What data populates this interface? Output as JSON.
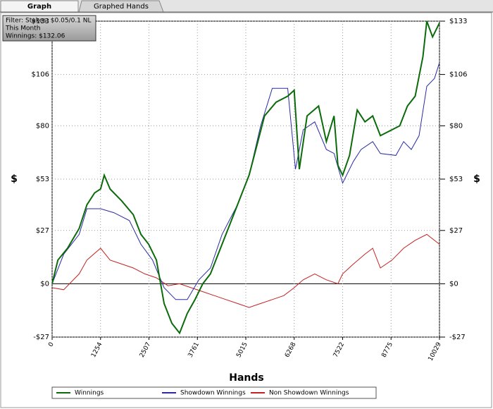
{
  "tabs": [
    "Graph",
    "Graphed Hands"
  ],
  "chart_data": {
    "type": "line",
    "info_lines": [
      "Filter: Stakes: $0.05/0.1 NL",
      "This Month",
      "Winnings: $132.06"
    ],
    "x_label": "Hands",
    "y_label": "$",
    "xlim": [
      0,
      10029
    ],
    "xticks": [
      0,
      1254,
      2507,
      3761,
      5015,
      6268,
      7522,
      8775,
      10029
    ],
    "ylim": [
      -27,
      133
    ],
    "yticks": [
      {
        "value": -27,
        "label": "-$27"
      },
      {
        "value": 0,
        "label": "$0"
      },
      {
        "value": 27,
        "label": "$27"
      },
      {
        "value": 53,
        "label": "$53"
      },
      {
        "value": 80,
        "label": "$80"
      },
      {
        "value": 106,
        "label": "$106"
      },
      {
        "value": 133,
        "label": "$133"
      }
    ],
    "grid": true,
    "series": [
      {
        "name": "Winnings",
        "color": "#0b6b0b",
        "x": [
          0,
          150,
          400,
          700,
          900,
          1100,
          1254,
          1350,
          1500,
          1800,
          2100,
          2300,
          2500,
          2700,
          2900,
          3100,
          3300,
          3500,
          3700,
          3900,
          4100,
          4300,
          4600,
          4900,
          5100,
          5300,
          5500,
          5800,
          6100,
          6268,
          6400,
          6600,
          6900,
          7100,
          7300,
          7400,
          7522,
          7700,
          7900,
          8100,
          8300,
          8500,
          8800,
          9000,
          9200,
          9400,
          9600,
          9700,
          9850,
          10029
        ],
        "values": [
          0,
          12,
          18,
          28,
          40,
          46,
          48,
          55,
          48,
          42,
          35,
          25,
          20,
          12,
          -10,
          -20,
          -25,
          -15,
          -8,
          0,
          5,
          15,
          30,
          45,
          55,
          70,
          85,
          92,
          95,
          98,
          58,
          85,
          90,
          72,
          85,
          60,
          55,
          65,
          88,
          82,
          85,
          75,
          78,
          80,
          90,
          95,
          115,
          133,
          125,
          132.06
        ]
      },
      {
        "name": "Showdown Winnings",
        "color": "#2a2aa8",
        "x": [
          0,
          300,
          700,
          900,
          1254,
          1600,
          2000,
          2300,
          2600,
          2900,
          3200,
          3500,
          3800,
          4100,
          4400,
          4800,
          5100,
          5400,
          5700,
          6100,
          6300,
          6500,
          6800,
          7100,
          7300,
          7522,
          7800,
          8000,
          8300,
          8500,
          8900,
          9100,
          9300,
          9500,
          9700,
          9900,
          10029
        ],
        "values": [
          0,
          15,
          25,
          38,
          38,
          36,
          32,
          20,
          12,
          -2,
          -8,
          -8,
          2,
          8,
          25,
          40,
          55,
          80,
          99,
          99,
          58,
          78,
          82,
          68,
          66,
          51,
          62,
          68,
          72,
          66,
          65,
          72,
          68,
          75,
          100,
          104,
          112
        ]
      },
      {
        "name": "Non Showdown Winnings",
        "color": "#c42222",
        "x": [
          0,
          300,
          700,
          900,
          1254,
          1500,
          1800,
          2100,
          2400,
          2700,
          3000,
          3300,
          3600,
          3900,
          4200,
          4500,
          4800,
          5100,
          5400,
          5700,
          6000,
          6268,
          6500,
          6800,
          7100,
          7400,
          7522,
          7800,
          8100,
          8300,
          8500,
          8800,
          9100,
          9400,
          9700,
          10029
        ],
        "values": [
          -2,
          -3,
          5,
          12,
          18,
          12,
          10,
          8,
          5,
          3,
          -1,
          0,
          -2,
          -4,
          -6,
          -8,
          -10,
          -12,
          -10,
          -8,
          -6,
          -2,
          2,
          5,
          2,
          0,
          5,
          10,
          15,
          18,
          8,
          12,
          18,
          22,
          25,
          20
        ]
      }
    ]
  }
}
